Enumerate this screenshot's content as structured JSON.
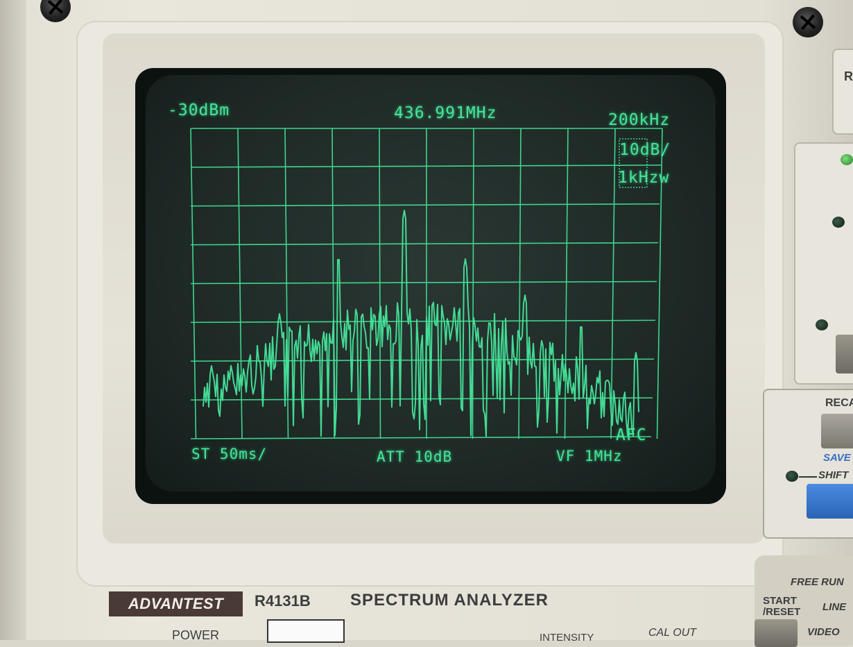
{
  "device": {
    "brand": "ADVANTEST",
    "model": "R4131B",
    "type": "SPECTRUM ANALYZER"
  },
  "screen": {
    "ref_level": "-30dBm",
    "center_freq": "436.991MHz",
    "span": "200kHz",
    "scale": "10dB/",
    "rbw": "1kHzw",
    "afc": "AFC",
    "sweep_time": "ST 50ms/",
    "attenuation": "ATT 10dB",
    "video_filter": "VF 1MHz",
    "trace_color": "#46e49a",
    "grid_color": "#3fd68c",
    "grid": {
      "columns": 10,
      "rows": 8
    }
  },
  "front_panel": {
    "power_label": "POWER",
    "intensity_label": "INTENSITY",
    "cal_out_label": "CAL  OUT",
    "recall_label": "RECA",
    "save_label": "SAVE",
    "shift_label": "SHIFT",
    "free_run_label": "FREE  RUN",
    "start_reset_label": "START\n/RESET",
    "line_label": "LINE",
    "video_label": "VIDEO",
    "top_right_partial": "R",
    "accent_blue": "#2f6fc2"
  }
}
